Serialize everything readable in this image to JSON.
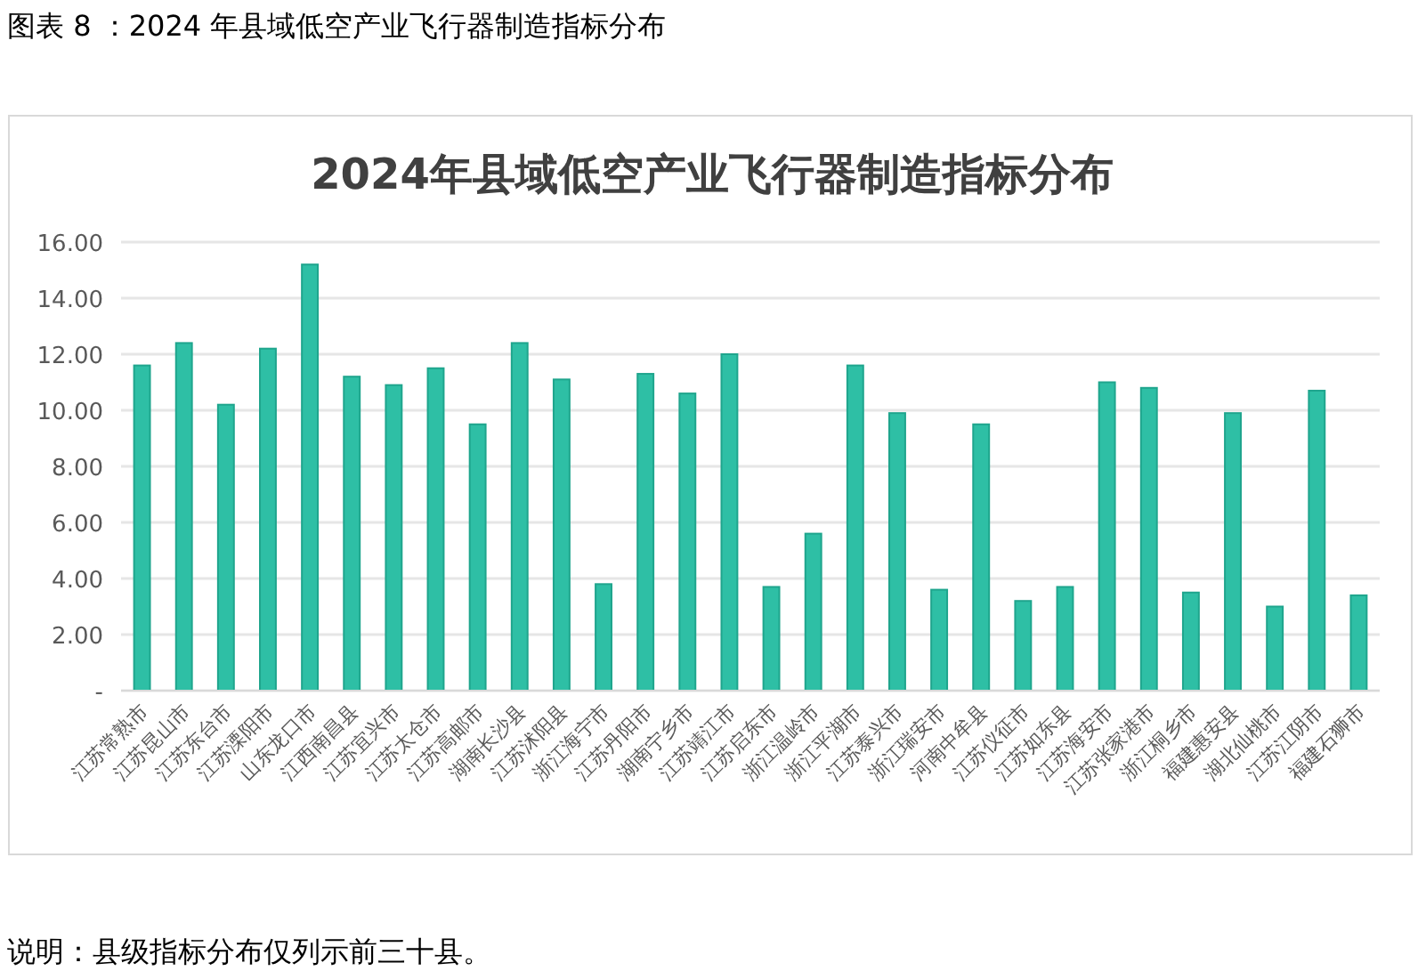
{
  "chart_data": {
    "type": "bar",
    "title": "2024年县域低空产业飞行器制造指标分布",
    "annotations": [
      "图表 8 ：2024 年县域低空产业飞行器制造指标分布",
      "说明：县级指标分布仅列示前三十县。"
    ],
    "categories": [
      "江苏常熟市",
      "江苏昆山市",
      "江苏东台市",
      "江苏溧阳市",
      "山东龙口市",
      "江西南昌县",
      "江苏宜兴市",
      "江苏太仓市",
      "江苏高邮市",
      "湖南长沙县",
      "江苏沭阳县",
      "浙江海宁市",
      "江苏丹阳市",
      "湖南宁乡市",
      "江苏靖江市",
      "江苏启东市",
      "浙江温岭市",
      "浙江平湖市",
      "江苏泰兴市",
      "浙江瑞安市",
      "河南中牟县",
      "江苏仪征市",
      "江苏如东县",
      "江苏海安市",
      "江苏张家港市",
      "浙江桐乡市",
      "福建惠安县",
      "湖北仙桃市",
      "江苏江阴市",
      "福建石狮市"
    ],
    "values": [
      11.6,
      12.4,
      10.2,
      12.2,
      15.2,
      11.2,
      10.9,
      11.5,
      9.5,
      12.4,
      11.1,
      3.8,
      11.3,
      10.6,
      12.0,
      3.7,
      5.6,
      11.6,
      9.9,
      3.6,
      9.5,
      3.2,
      3.7,
      11.0,
      10.8,
      3.5,
      9.9,
      3.0,
      10.7,
      3.4
    ],
    "color": "#2ebfa5",
    "ylim": [
      0,
      16
    ],
    "yticks": [
      {
        "value": 0,
        "label": "-"
      },
      {
        "value": 2,
        "label": "2.00"
      },
      {
        "value": 4,
        "label": "4.00"
      },
      {
        "value": 6,
        "label": "6.00"
      },
      {
        "value": 8,
        "label": "8.00"
      },
      {
        "value": 10,
        "label": "10.00"
      },
      {
        "value": 12,
        "label": "12.00"
      },
      {
        "value": 14,
        "label": "14.00"
      },
      {
        "value": 16,
        "label": "16.00"
      }
    ],
    "grid": "y"
  }
}
